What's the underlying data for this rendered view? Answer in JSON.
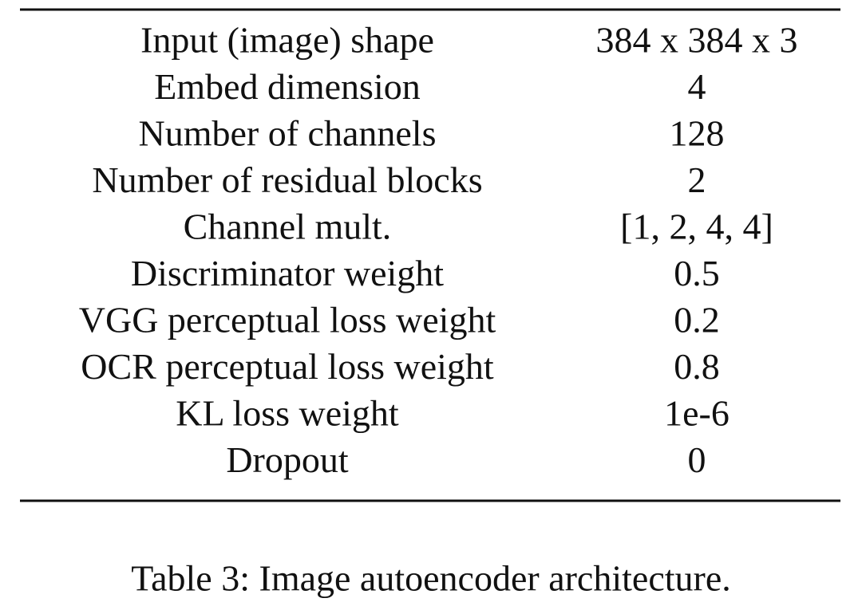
{
  "table": {
    "rows": [
      [
        "Input (image) shape",
        "384 x 384 x 3"
      ],
      [
        "Embed dimension",
        "4"
      ],
      [
        "Number of channels",
        "128"
      ],
      [
        "Number of residual blocks",
        "2"
      ],
      [
        "Channel mult.",
        "[1, 2, 4, 4]"
      ],
      [
        "Discriminator weight",
        "0.5"
      ],
      [
        "VGG perceptual loss weight",
        "0.2"
      ],
      [
        "OCR perceptual loss weight",
        "0.8"
      ],
      [
        "KL loss weight",
        "1e-6"
      ],
      [
        "Dropout",
        "0"
      ]
    ],
    "caption": "Table 3: Image autoencoder architecture."
  }
}
